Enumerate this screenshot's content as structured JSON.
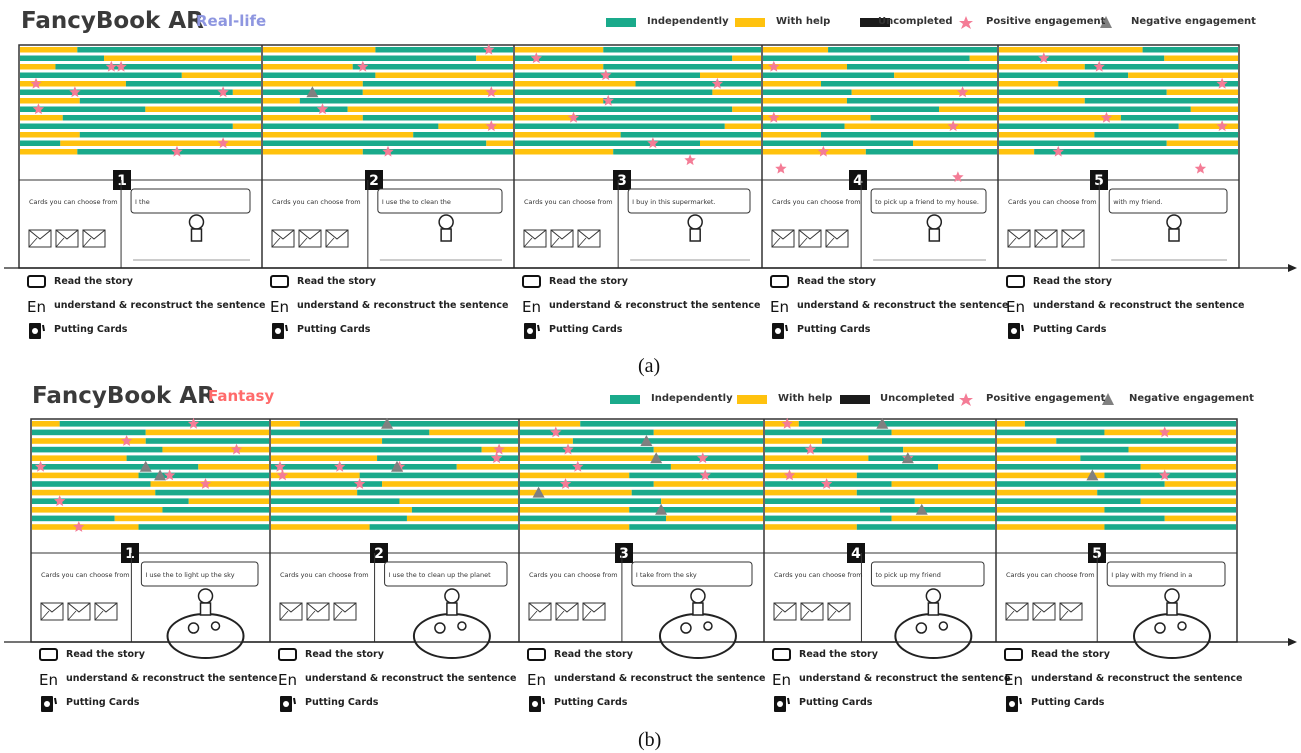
{
  "panels": [
    {
      "title": "FancyBook AR",
      "subtitle": "Real-life",
      "caption": "(a)",
      "legend": {
        "independent": "Independently",
        "help": "With help",
        "uncompleted": "Uncompleted",
        "positive": "Positive engagement",
        "negative": "Negative engagement"
      },
      "colors": {
        "independent": "#1aaa8b",
        "help": "#ffc20e",
        "uncompleted": "#1b1b1b",
        "positive": "#f47c96",
        "negative": "#808080",
        "subtitle": "#8e96e0"
      },
      "choose_label": "Cards you can choose from",
      "activities": [
        {
          "label": "Read the story",
          "icon": "phone-icon"
        },
        {
          "label": "understand & reconstruct the sentence",
          "icon": "en-language-icon"
        },
        {
          "label": "Putting Cards",
          "icon": "card-icon"
        }
      ],
      "stories": [
        {
          "number": "1",
          "sentence": "I    the"
        },
        {
          "number": "2",
          "sentence": "I use the      to clean the"
        },
        {
          "number": "3",
          "sentence": "I buy      in this supermarket."
        },
        {
          "number": "4",
          "sentence": "to pick up a friend to my house."
        },
        {
          "number": "5",
          "sentence": "with my friend."
        }
      ],
      "chart_data": {
        "type": "bar",
        "orientation": "horizontal",
        "note": "Per-child timelines across 5 story segments; each row split into independently / with help fractions of the segment.",
        "segments": [
          "1",
          "2",
          "3",
          "4",
          "5"
        ],
        "series": [
          {
            "name": "Independently",
            "fractions": [
              [
                0.76,
                0.35,
                0.85,
                0.67,
                0.56,
                0.88,
                0.75,
                0.52,
                0.82,
                0.88,
                0.75,
                0.17,
                0.76
              ],
              [
                0.55,
                0.85,
                0.64,
                0.45,
                0.6,
                0.4,
                0.85,
                0.34,
                0.6,
                0.7,
                0.4,
                0.89,
                0.6
              ],
              [
                0.64,
                0.88,
                0.64,
                0.75,
                0.51,
                0.8,
                0.64,
                0.88,
                0.75,
                0.85,
                0.57,
                0.75,
                0.6
              ],
              [
                0.72,
                0.88,
                0.64,
                0.56,
                0.75,
                0.38,
                0.64,
                0.75,
                0.54,
                0.35,
                0.75,
                0.64,
                0.56
              ],
              [
                0.4,
                0.69,
                0.64,
                0.54,
                0.75,
                0.7,
                0.64,
                0.8,
                0.49,
                0.75,
                0.6,
                0.7,
                0.85
              ]
            ]
          },
          {
            "name": "With help",
            "fractions": [
              [
                0.24,
                0.65,
                0.15,
                0.33,
                0.44,
                0.12,
                0.25,
                0.48,
                0.18,
                0.12,
                0.25,
                0.83,
                0.24
              ],
              [
                0.45,
                0.15,
                0.36,
                0.55,
                0.4,
                0.6,
                0.15,
                0.66,
                0.4,
                0.3,
                0.6,
                0.11,
                0.4
              ],
              [
                0.36,
                0.12,
                0.36,
                0.25,
                0.49,
                0.2,
                0.36,
                0.12,
                0.25,
                0.15,
                0.43,
                0.25,
                0.4
              ],
              [
                0.28,
                0.12,
                0.36,
                0.44,
                0.25,
                0.62,
                0.36,
                0.25,
                0.46,
                0.65,
                0.25,
                0.36,
                0.44
              ],
              [
                0.6,
                0.31,
                0.36,
                0.46,
                0.25,
                0.3,
                0.36,
                0.2,
                0.51,
                0.25,
                0.4,
                0.3,
                0.15
              ]
            ]
          }
        ],
        "positive_engagement": [
          [
            [
              2,
              0.38
            ],
            [
              4,
              0.07
            ],
            [
              5,
              0.23
            ],
            [
              2,
              0.42
            ],
            [
              5,
              0.84
            ],
            [
              7,
              0.08
            ],
            [
              11,
              0.84
            ],
            [
              12,
              0.65
            ]
          ],
          [
            [
              0,
              0.9
            ],
            [
              2,
              0.4
            ],
            [
              5,
              0.91
            ],
            [
              7,
              0.24
            ],
            [
              9,
              0.91
            ],
            [
              12,
              0.5
            ]
          ],
          [
            [
              1,
              0.09
            ],
            [
              3,
              0.37
            ],
            [
              4,
              0.82
            ],
            [
              6,
              0.38
            ],
            [
              8,
              0.24
            ],
            [
              11,
              0.56
            ],
            [
              13,
              0.71
            ]
          ],
          [
            [
              2,
              0.05
            ],
            [
              5,
              0.85
            ],
            [
              8,
              0.05
            ],
            [
              9,
              0.81
            ],
            [
              12,
              0.26
            ],
            [
              14,
              0.08
            ],
            [
              15,
              0.83
            ]
          ],
          [
            [
              1,
              0.19
            ],
            [
              2,
              0.42
            ],
            [
              4,
              0.93
            ],
            [
              8,
              0.45
            ],
            [
              9,
              0.93
            ],
            [
              12,
              0.25
            ],
            [
              14,
              0.84
            ]
          ]
        ],
        "negative_engagement": [
          [],
          [
            [
              5,
              0.2
            ]
          ],
          [],
          [],
          []
        ]
      }
    },
    {
      "title": "FancyBook AR",
      "subtitle": "Fantasy",
      "caption": "(b)",
      "legend": {
        "independent": "Independently",
        "help": "With help",
        "uncompleted": "Uncompleted",
        "positive": "Positive engagement",
        "negative": "Negative engagement"
      },
      "colors": {
        "independent": "#1aaa8b",
        "help": "#ffc20e",
        "uncompleted": "#1b1b1b",
        "positive": "#f47c96",
        "negative": "#808080",
        "subtitle": "#ff6b6b"
      },
      "choose_label": "Cards you can choose from",
      "activities": [
        {
          "label": "Read the story",
          "icon": "phone-icon"
        },
        {
          "label": "understand & reconstruct the sentence",
          "icon": "en-language-icon"
        },
        {
          "label": "Putting Cards",
          "icon": "card-icon"
        }
      ],
      "stories": [
        {
          "number": "1",
          "sentence": "I  use the      to light up the sky"
        },
        {
          "number": "2",
          "sentence": "I  use the      to clean up the planet"
        },
        {
          "number": "3",
          "sentence": "I take      from the sky"
        },
        {
          "number": "4",
          "sentence": "to pick up my friend"
        },
        {
          "number": "5",
          "sentence": "I play with my friend in a"
        }
      ],
      "chart_data": {
        "type": "bar",
        "orientation": "horizontal",
        "note": "Per-child timelines across 5 story segments; each row split into independently / with help fractions of the segment.",
        "segments": [
          "1",
          "2",
          "3",
          "4",
          "5"
        ],
        "series": [
          {
            "name": "Independently",
            "fractions": [
              [
                0.88,
                0.48,
                0.52,
                0.55,
                0.6,
                0.7,
                0.55,
                0.5,
                0.48,
                0.66,
                0.45,
                0.35,
                0.55
              ],
              [
                0.88,
                0.64,
                0.55,
                0.85,
                0.57,
                0.75,
                0.64,
                0.45,
                0.65,
                0.52,
                0.43,
                0.55,
                0.6
              ],
              [
                0.75,
                0.55,
                0.78,
                0.55,
                0.45,
                0.62,
                0.55,
                0.55,
                0.54,
                0.58,
                0.55,
                0.6,
                0.55
              ],
              [
                0.85,
                0.55,
                0.75,
                0.6,
                0.55,
                0.75,
                0.6,
                0.55,
                0.6,
                0.65,
                0.5,
                0.55,
                0.6
              ],
              [
                0.88,
                0.45,
                0.75,
                0.55,
                0.65,
                0.6,
                0.55,
                0.7,
                0.58,
                0.6,
                0.55,
                0.7,
                0.55
              ]
            ]
          },
          {
            "name": "With help",
            "fractions": [
              [
                0.12,
                0.52,
                0.48,
                0.45,
                0.4,
                0.3,
                0.45,
                0.5,
                0.52,
                0.34,
                0.55,
                0.65,
                0.45
              ],
              [
                0.12,
                0.36,
                0.45,
                0.15,
                0.43,
                0.25,
                0.36,
                0.55,
                0.35,
                0.48,
                0.57,
                0.45,
                0.4
              ],
              [
                0.25,
                0.45,
                0.22,
                0.45,
                0.55,
                0.38,
                0.45,
                0.45,
                0.46,
                0.42,
                0.45,
                0.4,
                0.45
              ],
              [
                0.15,
                0.45,
                0.25,
                0.4,
                0.45,
                0.25,
                0.4,
                0.45,
                0.4,
                0.35,
                0.5,
                0.45,
                0.4
              ],
              [
                0.12,
                0.55,
                0.25,
                0.45,
                0.35,
                0.4,
                0.45,
                0.3,
                0.42,
                0.4,
                0.45,
                0.3,
                0.45
              ]
            ]
          }
        ],
        "positive_engagement": [
          [
            [
              0,
              0.68
            ],
            [
              2,
              0.4
            ],
            [
              3,
              0.86
            ],
            [
              5,
              0.04
            ],
            [
              6,
              0.58
            ],
            [
              7,
              0.73
            ],
            [
              9,
              0.12
            ],
            [
              12,
              0.2
            ]
          ],
          [
            [
              3,
              0.92
            ],
            [
              4,
              0.91
            ],
            [
              5,
              0.04
            ],
            [
              5,
              0.28
            ],
            [
              5,
              0.52
            ],
            [
              6,
              0.05
            ],
            [
              7,
              0.36
            ]
          ],
          [
            [
              1,
              0.15
            ],
            [
              3,
              0.2
            ],
            [
              4,
              0.75
            ],
            [
              5,
              0.24
            ],
            [
              6,
              0.76
            ],
            [
              7,
              0.19
            ]
          ],
          [
            [
              0,
              0.1
            ],
            [
              3,
              0.2
            ],
            [
              4,
              0.62
            ],
            [
              6,
              0.11
            ],
            [
              7,
              0.27
            ]
          ],
          [
            [
              1,
              0.7
            ],
            [
              6,
              0.7
            ]
          ]
        ],
        "negative_engagement": [
          [
            [
              5,
              0.48
            ],
            [
              6,
              0.54
            ]
          ],
          [
            [
              0,
              0.47
            ],
            [
              5,
              0.51
            ]
          ],
          [
            [
              2,
              0.52
            ],
            [
              4,
              0.56
            ],
            [
              8,
              0.08
            ],
            [
              10,
              0.58
            ]
          ],
          [
            [
              0,
              0.51
            ],
            [
              4,
              0.62
            ],
            [
              10,
              0.68
            ]
          ],
          [
            [
              6,
              0.4
            ]
          ]
        ]
      }
    }
  ]
}
